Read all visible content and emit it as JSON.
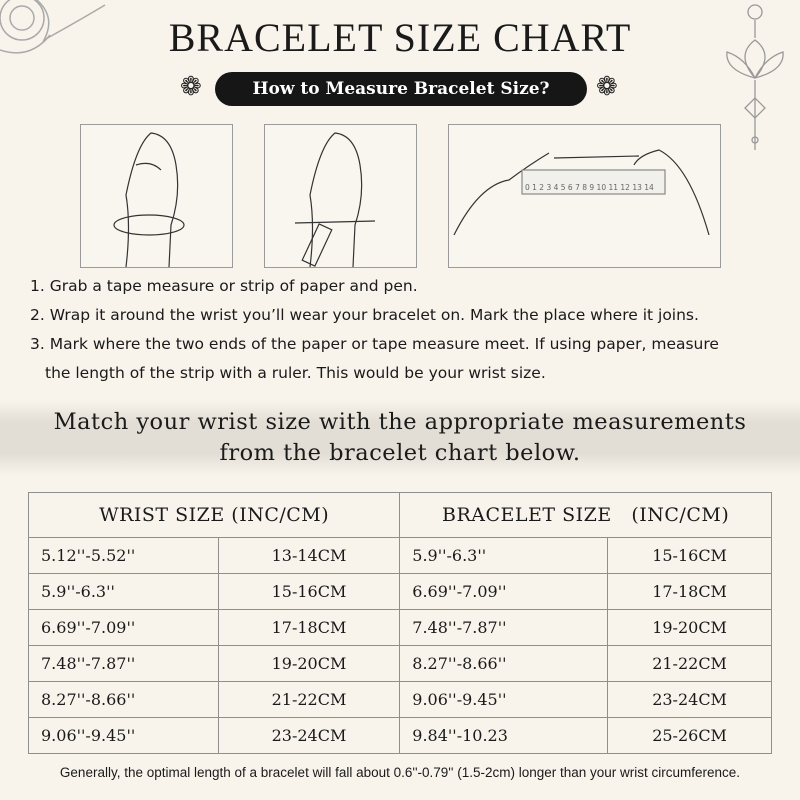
{
  "title": "BRACELET SIZE CHART",
  "subtitle": "How to Measure Bracelet Size?",
  "ruler_numbers": "0 1 2 3 4 5 6 7 8 9 10 11 12 13 14",
  "steps": [
    "1. Grab a tape measure or strip of paper and pen.",
    "2. Wrap it around the wrist you’ll wear your bracelet on. Mark the place where it joins.",
    "3. Mark where the two ends of the paper or tape measure meet. If using paper, measure",
    "the length of the strip with a ruler. This would be your wrist size."
  ],
  "match_line1": "Match your wrist size with the appropriate measurements",
  "match_line2": "from the bracelet chart below.",
  "table": {
    "headers": [
      "WRIST SIZE (INC/CM)",
      "BRACELET SIZE   (INC/CM)"
    ],
    "rows": [
      [
        "5.12''-5.52''",
        "13-14CM",
        "5.9''-6.3''",
        "15-16CM"
      ],
      [
        "5.9''-6.3''",
        "15-16CM",
        "6.69''-7.09''",
        "17-18CM"
      ],
      [
        "6.69''-7.09''",
        "17-18CM",
        "7.48''-7.87''",
        "19-20CM"
      ],
      [
        "7.48''-7.87''",
        "19-20CM",
        "8.27''-8.66''",
        "21-22CM"
      ],
      [
        "8.27''-8.66''",
        "21-22CM",
        "9.06''-9.45''",
        "23-24CM"
      ],
      [
        "9.06''-9.45''",
        "23-24CM",
        "9.84''-10.23",
        "25-26CM"
      ]
    ]
  },
  "note": "Generally, the optimal length of a bracelet will fall about 0.6''-0.79'' (1.5-2cm) longer than your wrist circumference."
}
